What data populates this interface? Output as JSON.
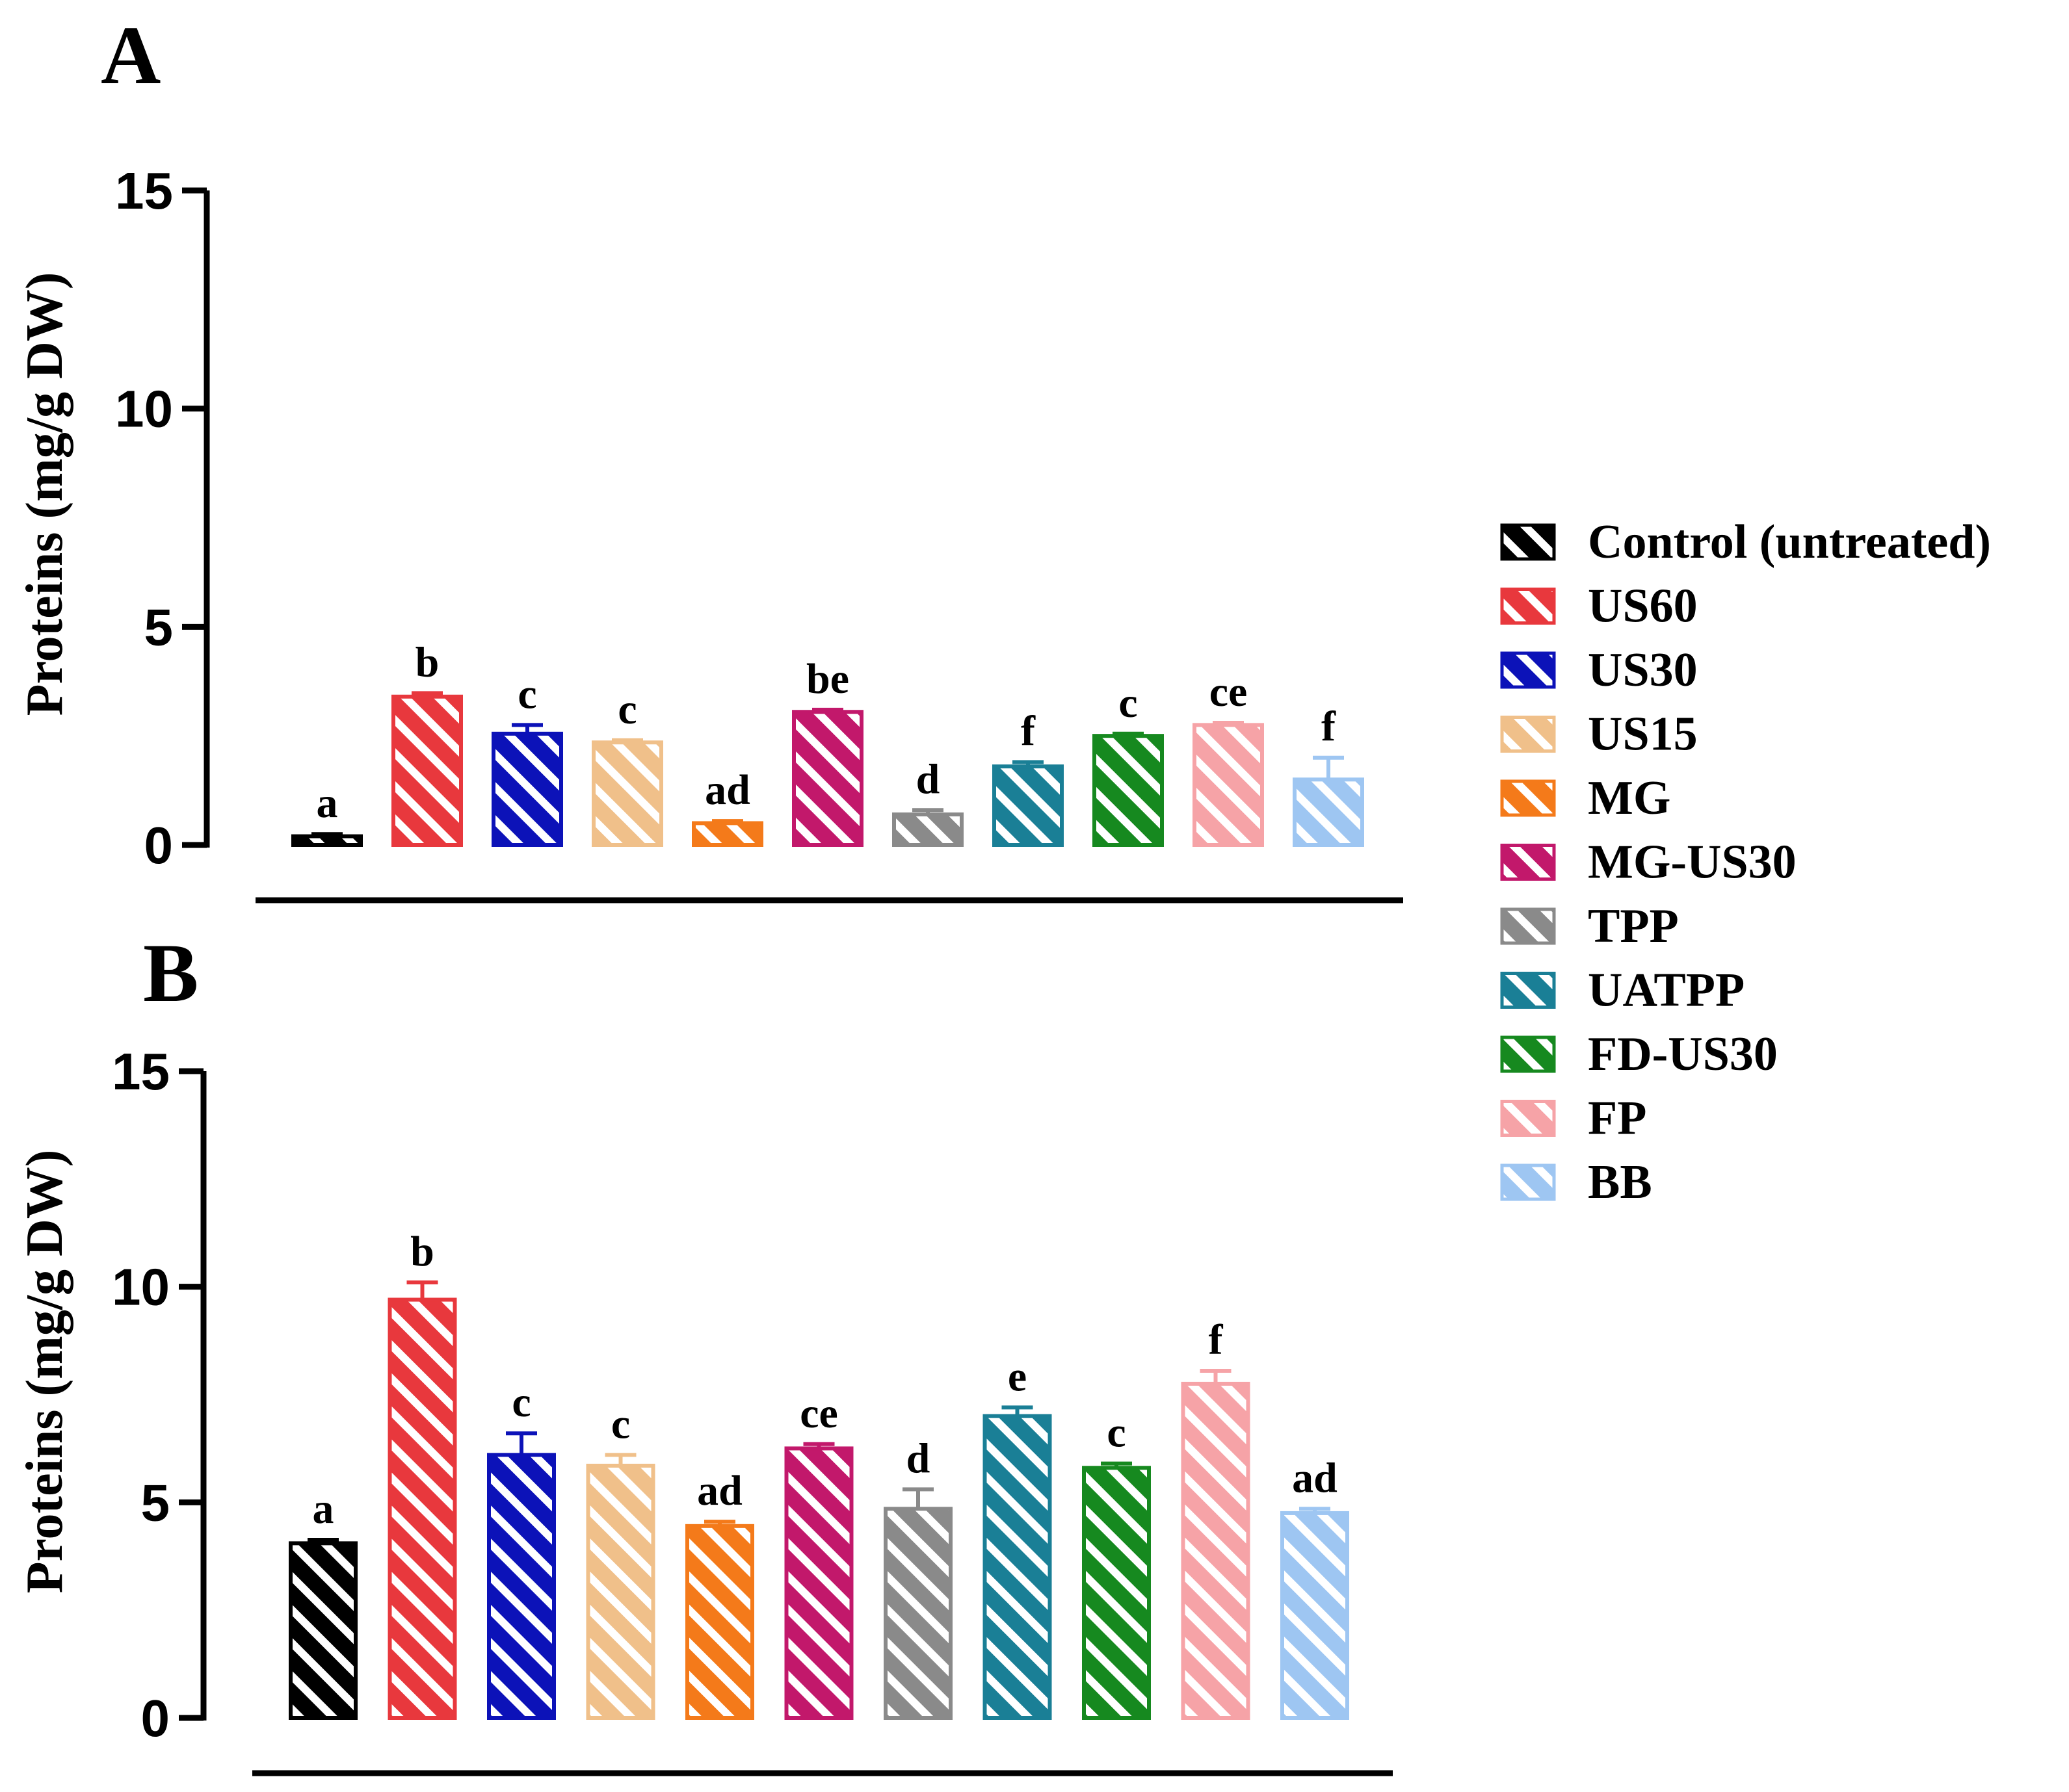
{
  "chart_data": [
    {
      "type": "bar",
      "panel": "A",
      "ylabel": "Proteins (mg/g DW)",
      "xlabel": "",
      "ylim": [
        0,
        15
      ],
      "yticks": [
        "0",
        "5",
        "10",
        "15"
      ],
      "grid": false,
      "categories": [
        "Control (untreated)",
        "US60",
        "US30",
        "US15",
        "MG",
        "MG-US30",
        "TPP",
        "UATPP",
        "FD-US30",
        "FP",
        "BB"
      ],
      "values": [
        0.2,
        3.4,
        2.55,
        2.35,
        0.5,
        3.05,
        0.7,
        1.8,
        2.5,
        2.75,
        1.5
      ],
      "errors": [
        0.05,
        0.08,
        0.2,
        0.05,
        0.05,
        0.05,
        0.1,
        0.1,
        0.05,
        0.05,
        0.5
      ],
      "letters": [
        "a",
        "b",
        "c",
        "c",
        "ad",
        "be",
        "d",
        "f",
        "c",
        "ce",
        "f"
      ]
    },
    {
      "type": "bar",
      "panel": "B",
      "ylabel": "Proteins (mg/g DW)",
      "xlabel": "",
      "ylim": [
        0,
        15
      ],
      "yticks": [
        "0",
        "5",
        "10",
        "15"
      ],
      "grid": false,
      "categories": [
        "Control (untreated)",
        "US60",
        "US30",
        "US15",
        "MG",
        "MG-US30",
        "TPP",
        "UATPP",
        "FD-US30",
        "FP",
        "BB"
      ],
      "values": [
        4.05,
        9.7,
        6.1,
        5.85,
        4.45,
        6.25,
        4.85,
        7.0,
        5.8,
        7.75,
        4.75
      ],
      "errors": [
        0.08,
        0.4,
        0.5,
        0.25,
        0.1,
        0.1,
        0.45,
        0.2,
        0.1,
        0.3,
        0.1
      ],
      "letters": [
        "a",
        "b",
        "c",
        "c",
        "ad",
        "ce",
        "d",
        "e",
        "c",
        "f",
        "ad"
      ]
    }
  ],
  "legend": {
    "placement": "right",
    "entries": [
      {
        "label": "Control (untreated)",
        "color": "#000000"
      },
      {
        "label": "US60",
        "color": "#e8383d"
      },
      {
        "label": "US30",
        "color": "#0c12b8"
      },
      {
        "label": "US15",
        "color": "#f0c08a"
      },
      {
        "label": "MG",
        "color": "#f47a1a"
      },
      {
        "label": "MG-US30",
        "color": "#c2186b"
      },
      {
        "label": "TPP",
        "color": "#8a8a8a"
      },
      {
        "label": "UATPP",
        "color": "#1a7f96"
      },
      {
        "label": "FD-US30",
        "color": "#16891f"
      },
      {
        "label": "FP",
        "color": "#f6a3a7"
      },
      {
        "label": "BB",
        "color": "#9ec6f2"
      }
    ]
  }
}
